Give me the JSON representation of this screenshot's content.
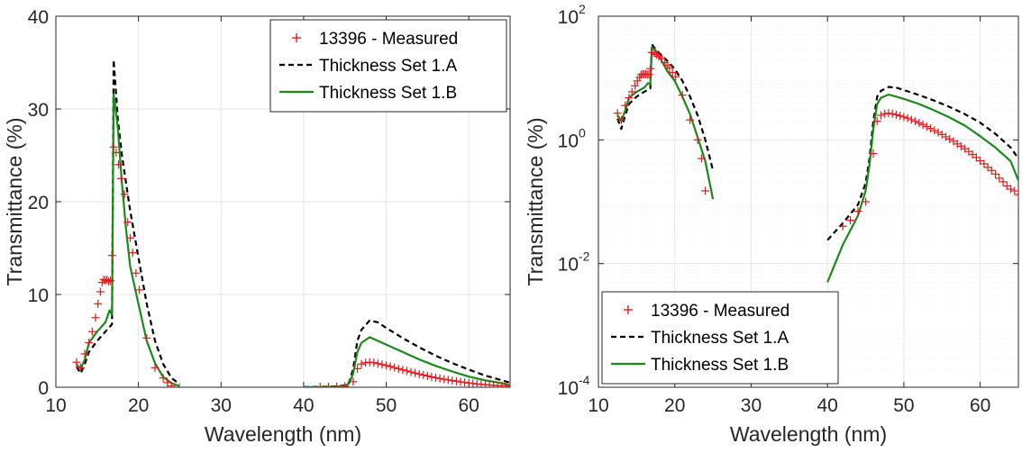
{
  "chart_data": [
    {
      "type": "line",
      "xlabel": "Wavelength (nm)",
      "ylabel": "Transmittance (%)",
      "xlim": [
        10,
        65
      ],
      "ylim": [
        0,
        40
      ],
      "yscale": "linear",
      "xticks": [
        10,
        20,
        30,
        40,
        50,
        60
      ],
      "yticks": [
        0,
        10,
        20,
        30,
        40
      ],
      "grid": true,
      "legend_position": "top-right",
      "series": [
        {
          "name": "13396 - Measured",
          "style": "markers-plus",
          "color": "#e41a1c",
          "points": [
            [
              12.5,
              2.7
            ],
            [
              13.0,
              2.1
            ],
            [
              13.5,
              3.6
            ],
            [
              14.0,
              4.8
            ],
            [
              14.4,
              6.0
            ],
            [
              14.8,
              7.5
            ],
            [
              15.1,
              9.0
            ],
            [
              15.4,
              10.3
            ],
            [
              15.6,
              11.3
            ],
            [
              15.8,
              11.6
            ],
            [
              16.0,
              11.5
            ],
            [
              16.2,
              11.6
            ],
            [
              16.4,
              11.4
            ],
            [
              16.6,
              11.5
            ],
            [
              16.8,
              14.2
            ],
            [
              17.0,
              25.9
            ],
            [
              17.3,
              25.3
            ],
            [
              17.6,
              24.0
            ],
            [
              17.9,
              22.5
            ],
            [
              18.3,
              20.8
            ],
            [
              18.7,
              17.8
            ],
            [
              19.0,
              16.1
            ],
            [
              19.3,
              14.5
            ],
            [
              19.7,
              12.3
            ],
            [
              20.1,
              10.5
            ],
            [
              21.0,
              5.3
            ],
            [
              22.0,
              2.1
            ],
            [
              23.0,
              1.0
            ],
            [
              23.5,
              0.5
            ],
            [
              24.0,
              0.15
            ],
            [
              42.0,
              0.04
            ],
            [
              43.0,
              0.05
            ],
            [
              44.0,
              0.07
            ],
            [
              45.0,
              0.1
            ],
            [
              46.0,
              0.6
            ],
            [
              46.5,
              2.0
            ],
            [
              47.0,
              2.5
            ],
            [
              47.5,
              2.65
            ],
            [
              48.0,
              2.7
            ],
            [
              48.5,
              2.65
            ],
            [
              49.0,
              2.55
            ],
            [
              49.5,
              2.45
            ],
            [
              50.0,
              2.35
            ],
            [
              50.5,
              2.25
            ],
            [
              51.0,
              2.12
            ],
            [
              51.5,
              2.0
            ],
            [
              52.0,
              1.88
            ],
            [
              52.5,
              1.76
            ],
            [
              53.0,
              1.64
            ],
            [
              53.5,
              1.53
            ],
            [
              54.0,
              1.42
            ],
            [
              54.5,
              1.32
            ],
            [
              55.0,
              1.22
            ],
            [
              55.5,
              1.12
            ],
            [
              56.0,
              1.03
            ],
            [
              56.5,
              0.95
            ],
            [
              57.0,
              0.86
            ],
            [
              57.5,
              0.79
            ],
            [
              58.0,
              0.72
            ],
            [
              58.5,
              0.65
            ],
            [
              59.0,
              0.58
            ],
            [
              59.5,
              0.52
            ],
            [
              60.0,
              0.46
            ],
            [
              60.5,
              0.41
            ],
            [
              61.0,
              0.36
            ],
            [
              61.5,
              0.32
            ],
            [
              62.0,
              0.28
            ],
            [
              62.5,
              0.24
            ],
            [
              63.0,
              0.21
            ],
            [
              63.5,
              0.18
            ],
            [
              64.0,
              0.16
            ],
            [
              64.5,
              0.15
            ],
            [
              65.0,
              0.13
            ]
          ]
        },
        {
          "name": "Thickness Set 1.A",
          "style": "dashed",
          "color": "#000000",
          "points": [
            [
              12.5,
              2.2
            ],
            [
              13.0,
              1.5
            ],
            [
              13.5,
              2.5
            ],
            [
              14.0,
              3.8
            ],
            [
              15.0,
              5.0
            ],
            [
              16.0,
              6.0
            ],
            [
              16.5,
              6.5
            ],
            [
              16.8,
              6.8
            ],
            [
              17.0,
              35.3
            ],
            [
              17.5,
              29.0
            ],
            [
              18.0,
              25.0
            ],
            [
              18.5,
              22.0
            ],
            [
              19.0,
              19.0
            ],
            [
              20.0,
              14.0
            ],
            [
              21.0,
              9.0
            ],
            [
              22.0,
              5.0
            ],
            [
              23.0,
              2.5
            ],
            [
              24.0,
              1.0
            ],
            [
              25.0,
              0.32
            ],
            [
              40.0,
              0.024
            ],
            [
              42.0,
              0.045
            ],
            [
              44.0,
              0.09
            ],
            [
              45.0,
              0.2
            ],
            [
              45.5,
              0.5
            ],
            [
              46.0,
              2.0
            ],
            [
              46.5,
              5.0
            ],
            [
              47.0,
              6.2
            ],
            [
              48.0,
              7.2
            ],
            [
              49.0,
              7.0
            ],
            [
              50.0,
              6.4
            ],
            [
              52.0,
              5.3
            ],
            [
              54.0,
              4.3
            ],
            [
              56.0,
              3.4
            ],
            [
              58.0,
              2.6
            ],
            [
              60.0,
              1.9
            ],
            [
              62.0,
              1.25
            ],
            [
              64.0,
              0.75
            ],
            [
              65.0,
              0.5
            ]
          ]
        },
        {
          "name": "Thickness Set 1.B",
          "style": "solid",
          "color": "#1a8a1a",
          "points": [
            [
              12.5,
              2.5
            ],
            [
              13.0,
              2.0
            ],
            [
              13.5,
              3.0
            ],
            [
              14.0,
              4.8
            ],
            [
              15.0,
              6.0
            ],
            [
              16.0,
              7.0
            ],
            [
              16.5,
              8.3
            ],
            [
              16.8,
              7.8
            ],
            [
              17.0,
              31.6
            ],
            [
              17.5,
              28.0
            ],
            [
              18.0,
              22.0
            ],
            [
              18.5,
              17.0
            ],
            [
              19.0,
              13.0
            ],
            [
              20.0,
              9.0
            ],
            [
              21.0,
              5.0
            ],
            [
              22.0,
              2.6
            ],
            [
              23.0,
              1.1
            ],
            [
              24.0,
              0.45
            ],
            [
              25.0,
              0.11
            ],
            [
              40.0,
              0.005
            ],
            [
              42.0,
              0.02
            ],
            [
              44.0,
              0.06
            ],
            [
              45.0,
              0.15
            ],
            [
              45.5,
              0.4
            ],
            [
              46.0,
              1.5
            ],
            [
              46.5,
              3.8
            ],
            [
              47.0,
              4.8
            ],
            [
              48.0,
              5.4
            ],
            [
              49.0,
              5.0
            ],
            [
              50.0,
              4.6
            ],
            [
              52.0,
              3.8
            ],
            [
              54.0,
              3.0
            ],
            [
              56.0,
              2.3
            ],
            [
              58.0,
              1.7
            ],
            [
              60.0,
              1.15
            ],
            [
              62.0,
              0.75
            ],
            [
              64.0,
              0.45
            ],
            [
              65.0,
              0.22
            ]
          ]
        }
      ]
    },
    {
      "type": "line",
      "xlabel": "Wavelength (nm)",
      "ylabel": "Transmittance (%)",
      "xlim": [
        10,
        65
      ],
      "ylim": [
        0.0001,
        100
      ],
      "yscale": "log",
      "xticks": [
        10,
        20,
        30,
        40,
        50,
        60
      ],
      "yticks": [
        0.0001,
        0.01,
        1,
        100
      ],
      "ytick_labels": [
        {
          "base": "10",
          "exp": "-4"
        },
        {
          "base": "10",
          "exp": "-2"
        },
        {
          "base": "10",
          "exp": "0"
        },
        {
          "base": "10",
          "exp": "2"
        }
      ],
      "grid": true,
      "minor_grid": true,
      "legend_position": "bottom-left",
      "series_ref": "same as left panel"
    }
  ],
  "colors": {
    "measured": "#e41a1c",
    "set_a": "#000000",
    "set_b": "#1a8a1a",
    "grid": "#e6e6e6",
    "axis": "#262626"
  }
}
